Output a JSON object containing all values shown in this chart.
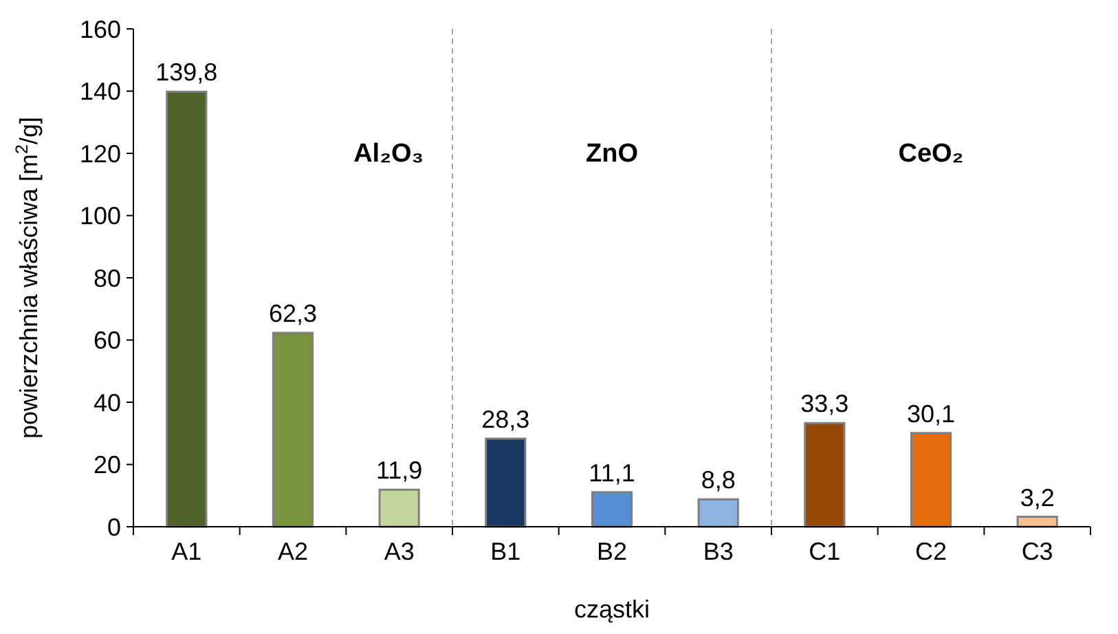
{
  "chart_data": {
    "type": "bar",
    "xlabel": "cząstki",
    "ylabel": "powierzchnia właściwa [m$^{2}$/g]",
    "categories": [
      "A1",
      "A2",
      "A3",
      "B1",
      "B2",
      "B3",
      "C1",
      "C2",
      "C3"
    ],
    "values": [
      139.8,
      62.3,
      11.9,
      28.3,
      11.1,
      8.8,
      33.3,
      30.1,
      3.2
    ],
    "colors": [
      "#4f6228",
      "#77933c",
      "#c3d69b",
      "#17375e",
      "#558ed5",
      "#8db3e2",
      "#984807",
      "#e46c0a",
      "#fac090"
    ],
    "value_labels": [
      "139,8",
      "62,3",
      "11,9",
      "28,3",
      "11,1",
      "8,8",
      "33,3",
      "30,1",
      "3,2"
    ],
    "ylim": [
      0,
      160
    ],
    "yticks": [
      0,
      20,
      40,
      60,
      80,
      100,
      120,
      140,
      160
    ],
    "grid": false,
    "annotations": [
      "Al₂O₃",
      "ZnO",
      "CeO₂"
    ]
  }
}
